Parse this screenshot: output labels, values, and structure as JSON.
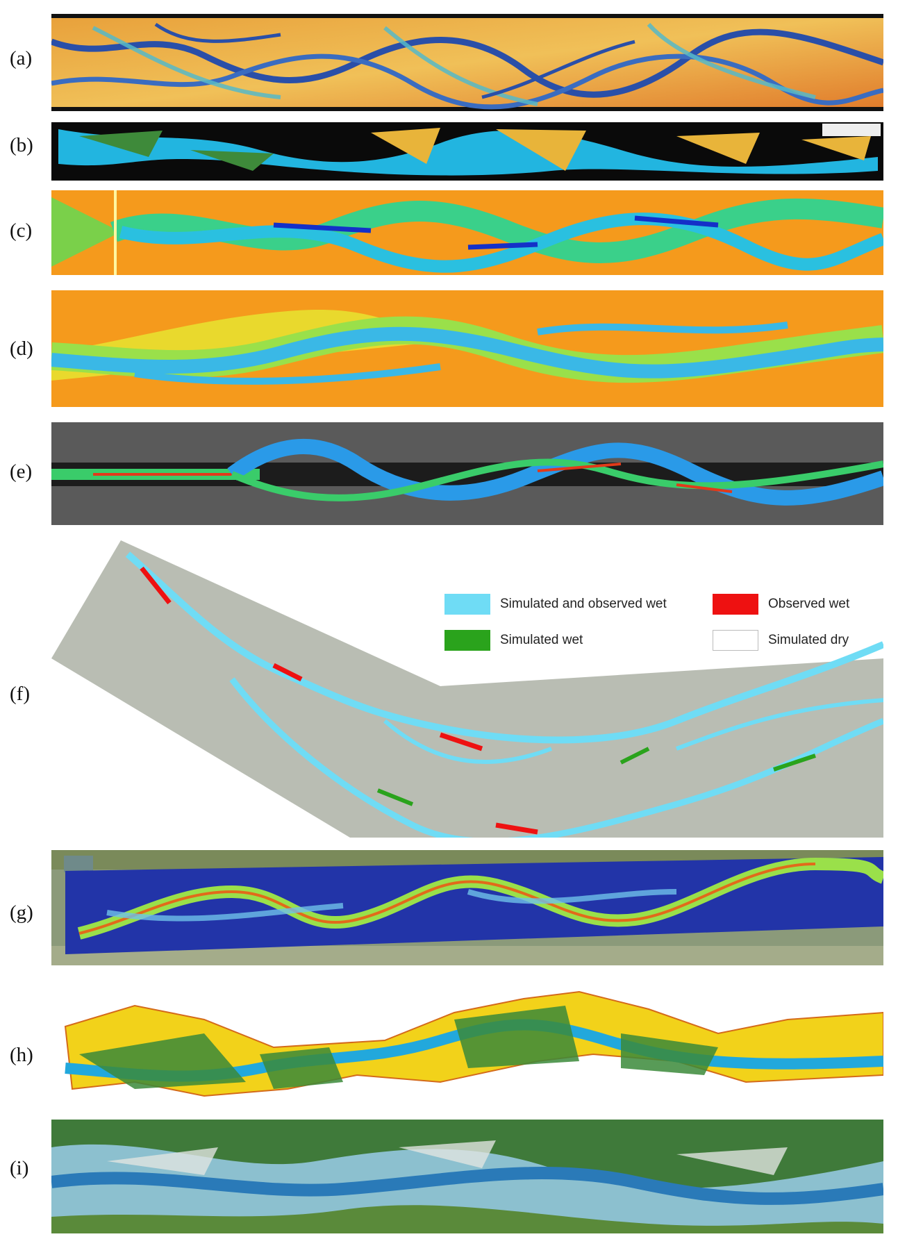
{
  "panels": [
    {
      "label": "(a)"
    },
    {
      "label": "(b)"
    },
    {
      "label": "(c)"
    },
    {
      "label": "(d)"
    },
    {
      "label": "(e)"
    },
    {
      "label": "(f)"
    },
    {
      "label": "(g)"
    },
    {
      "label": "(h)"
    },
    {
      "label": "(i)"
    }
  ],
  "legend": {
    "items": [
      {
        "text": "Simulated and observed wet",
        "color": "#6fdcf5"
      },
      {
        "text": "Observed wet",
        "color": "#ee1111"
      },
      {
        "text": "Simulated wet",
        "color": "#2aa31c"
      },
      {
        "text": "Simulated dry",
        "color": "#ffffff"
      }
    ]
  },
  "colors": {
    "a_bg": "#f0a23a",
    "a_channel": "#2a4fa8",
    "a_mid": "#56b8c8",
    "b_bg": "#0a0a0a",
    "b_channel": "#22b5e0",
    "b_bar": "#e8b43a",
    "c_bg": "#f59a1c",
    "c_channel": "#3ad08a",
    "c_deep": "#1430c8",
    "d_bg": "#f59a1c",
    "d_channel": "#3ab8e6",
    "d_green": "#9ae04a",
    "e_bg": "#5a5a5a",
    "e_channel": "#2a9ae8",
    "e_red": "#e23a1a",
    "f_bg": "#b9bdb3",
    "g_bg": "#8b9a7a",
    "g_water": "#2234a8",
    "h_bg": "#f2d21a",
    "h_green": "#3b8a3a",
    "i_bg": "#8cc0cf"
  }
}
